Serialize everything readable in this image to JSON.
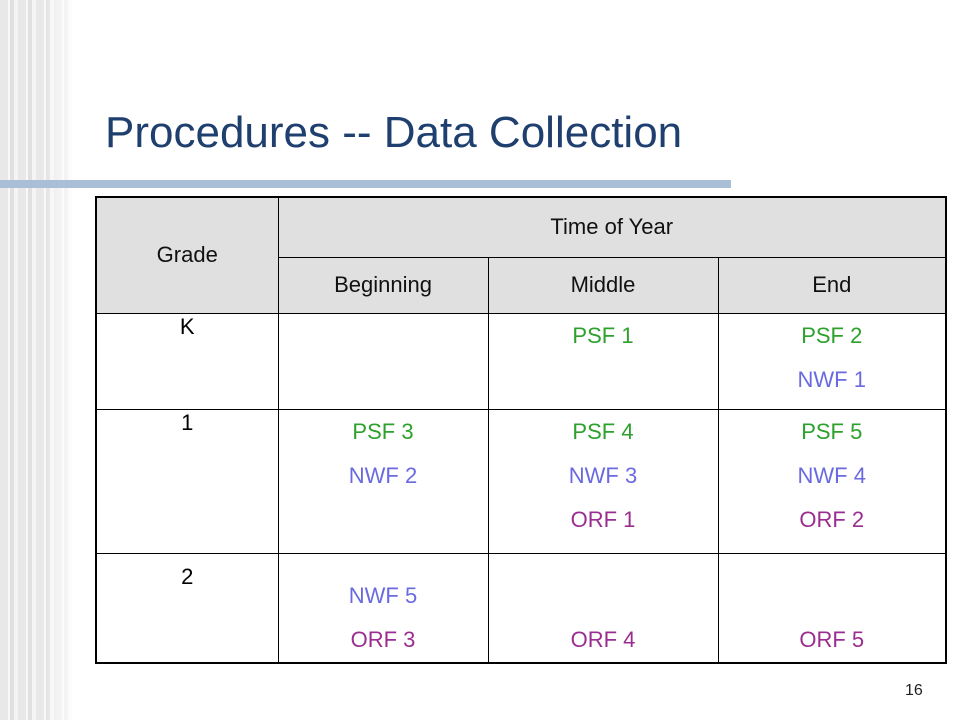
{
  "slide": {
    "title": "Procedures -- Data Collection",
    "number": "16"
  },
  "colors": {
    "title": "#1f3f6f",
    "psf": "#2da02d",
    "nwf": "#6a6ae0",
    "orf": "#9a2e90",
    "header_bg": "#e0e0e0"
  },
  "table": {
    "grade_header": "Grade",
    "time_header": "Time of Year",
    "columns": [
      "Beginning",
      "Middle",
      "End"
    ],
    "rows": [
      {
        "grade": "K",
        "beginning": [],
        "middle": [
          "PSF 1"
        ],
        "end": [
          "PSF 2",
          "NWF 1"
        ]
      },
      {
        "grade": "1",
        "beginning": [
          "PSF 3",
          "NWF 2"
        ],
        "middle": [
          "PSF 4",
          "NWF 3",
          "ORF 1"
        ],
        "end": [
          "PSF 5",
          "NWF 4",
          "ORF 2"
        ]
      },
      {
        "grade": "2",
        "beginning": [
          "NWF 5",
          "ORF 3"
        ],
        "middle": [
          "ORF 4"
        ],
        "end": [
          "ORF 5"
        ]
      }
    ]
  }
}
